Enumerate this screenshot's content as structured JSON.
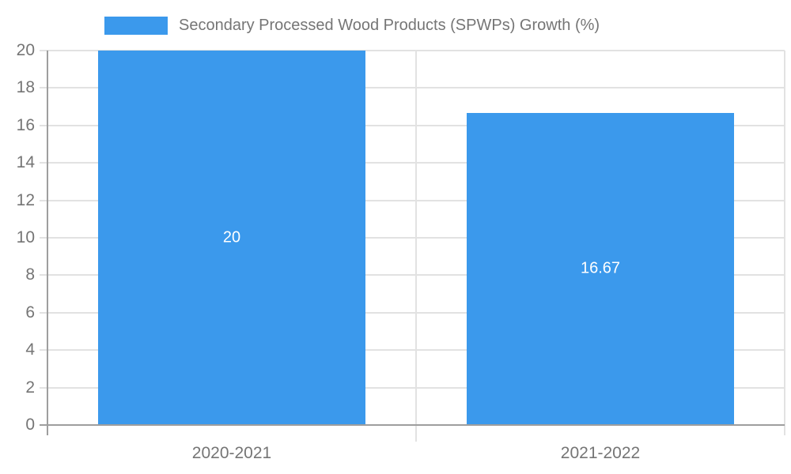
{
  "legend": {
    "label": "Secondary Processed Wood Products (SPWPs) Growth (%)"
  },
  "chart_data": {
    "type": "bar",
    "title": "",
    "series_name": "Secondary Processed Wood Products (SPWPs) Growth (%)",
    "categories": [
      "2020-2021",
      "2021-2022"
    ],
    "values": [
      20,
      16.67
    ],
    "bar_labels": [
      "20",
      "16.67"
    ],
    "xlabel": "",
    "ylabel": "",
    "ylim": [
      0,
      20
    ],
    "yticks": [
      0,
      2,
      4,
      6,
      8,
      10,
      12,
      14,
      16,
      18,
      20
    ],
    "grid": true,
    "legend_position": "top"
  },
  "colors": {
    "bar": "#3B99EC",
    "axis_line": "#9e9e9e",
    "gridline": "#e2e2e2",
    "tick_text": "#757575",
    "bar_label_text": "#ffffff",
    "background": "#ffffff"
  }
}
